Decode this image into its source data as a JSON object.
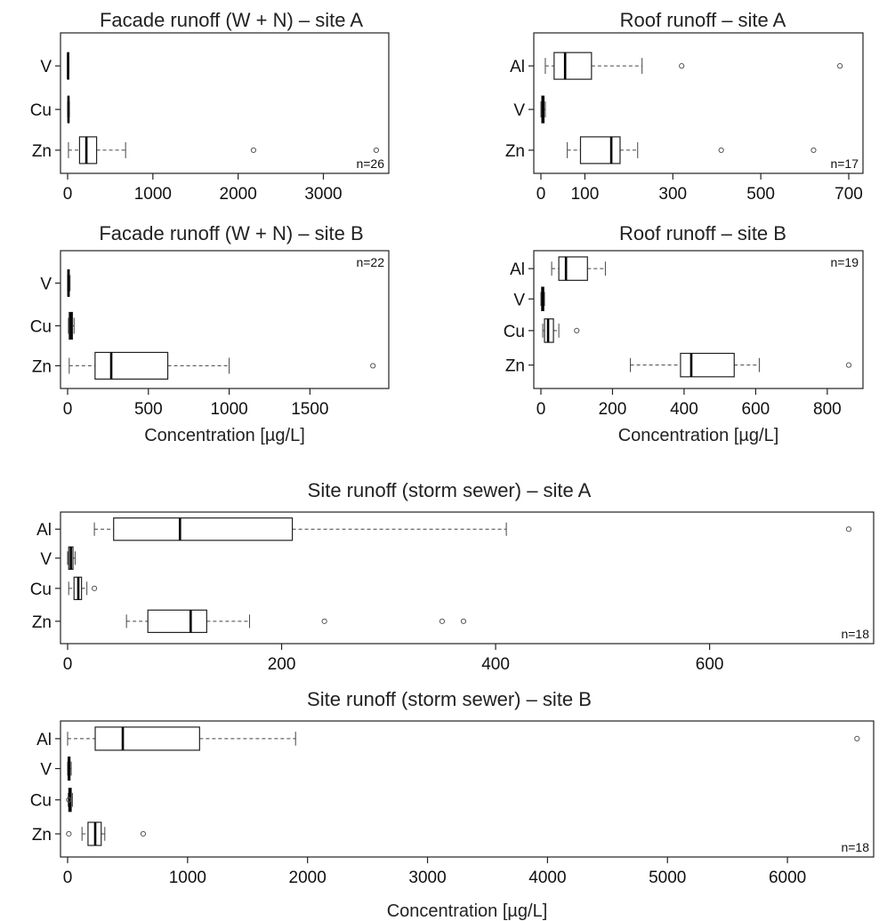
{
  "chart_data": [
    {
      "type": "box",
      "title": "Facade runoff (W + N) – site A",
      "xlabel": "",
      "n_label": "n=26",
      "xlim": [
        0,
        3600
      ],
      "xticks": [
        0,
        1000,
        2000,
        3000
      ],
      "categories": [
        "V",
        "Cu",
        "Zn"
      ],
      "boxes": [
        {
          "category": "V",
          "whisker_low": 0,
          "q1": 2,
          "median": 5,
          "q3": 10,
          "whisker_high": 15,
          "outliers": []
        },
        {
          "category": "Cu",
          "whisker_low": 0,
          "q1": 5,
          "median": 10,
          "q3": 15,
          "whisker_high": 20,
          "outliers": []
        },
        {
          "category": "Zn",
          "whisker_low": 10,
          "q1": 140,
          "median": 220,
          "q3": 340,
          "whisker_high": 680,
          "outliers": [
            2180,
            3620
          ]
        }
      ]
    },
    {
      "type": "box",
      "title": "Roof runoff – site A",
      "xlabel": "",
      "n_label": "n=17",
      "xlim": [
        0,
        700
      ],
      "xticks": [
        0,
        100,
        300,
        500,
        700
      ],
      "categories": [
        "Al",
        "V",
        "Zn"
      ],
      "boxes": [
        {
          "category": "Al",
          "whisker_low": 10,
          "q1": 30,
          "median": 55,
          "q3": 115,
          "whisker_high": 230,
          "outliers": [
            320,
            680
          ]
        },
        {
          "category": "V",
          "whisker_low": 0,
          "q1": 2,
          "median": 5,
          "q3": 7,
          "whisker_high": 10,
          "outliers": []
        },
        {
          "category": "Zn",
          "whisker_low": 60,
          "q1": 90,
          "median": 160,
          "q3": 180,
          "whisker_high": 220,
          "outliers": [
            410,
            620
          ]
        }
      ]
    },
    {
      "type": "box",
      "title": "Facade runoff (W + N) – site B",
      "xlabel": "Concentration [µg/L]",
      "n_label": "n=22",
      "xlim": [
        0,
        1900
      ],
      "xticks": [
        0,
        500,
        1000,
        1500
      ],
      "categories": [
        "V",
        "Cu",
        "Zn"
      ],
      "boxes": [
        {
          "category": "V",
          "whisker_low": 0,
          "q1": 2,
          "median": 5,
          "q3": 10,
          "whisker_high": 15,
          "outliers": []
        },
        {
          "category": "Cu",
          "whisker_low": 5,
          "q1": 10,
          "median": 20,
          "q3": 30,
          "whisker_high": 40,
          "outliers": []
        },
        {
          "category": "Zn",
          "whisker_low": 10,
          "q1": 170,
          "median": 270,
          "q3": 620,
          "whisker_high": 1000,
          "outliers": [
            1890
          ]
        }
      ]
    },
    {
      "type": "box",
      "title": "Roof runoff – site B",
      "xlabel": "Concentration [µg/L]",
      "n_label": "n=19",
      "xlim": [
        0,
        860
      ],
      "xticks": [
        0,
        200,
        400,
        600,
        800
      ],
      "categories": [
        "Al",
        "V",
        "Cu",
        "Zn"
      ],
      "boxes": [
        {
          "category": "Al",
          "whisker_low": 30,
          "q1": 50,
          "median": 70,
          "q3": 130,
          "whisker_high": 180,
          "outliers": []
        },
        {
          "category": "V",
          "whisker_low": 0,
          "q1": 2,
          "median": 5,
          "q3": 8,
          "whisker_high": 10,
          "outliers": []
        },
        {
          "category": "Cu",
          "whisker_low": 5,
          "q1": 10,
          "median": 20,
          "q3": 35,
          "whisker_high": 50,
          "outliers": [
            100
          ]
        },
        {
          "category": "Zn",
          "whisker_low": 250,
          "q1": 390,
          "median": 420,
          "q3": 540,
          "whisker_high": 610,
          "outliers": [
            860
          ]
        }
      ]
    },
    {
      "type": "box",
      "title": "Site runoff (storm sewer) – site A",
      "xlabel": "",
      "n_label": "n=18",
      "xlim": [
        0,
        740
      ],
      "xticks": [
        0,
        200,
        400,
        600
      ],
      "categories": [
        "Al",
        "V",
        "Cu",
        "Zn"
      ],
      "boxes": [
        {
          "category": "Al",
          "whisker_low": 25,
          "q1": 43,
          "median": 105,
          "q3": 210,
          "whisker_high": 410,
          "outliers": [
            730
          ]
        },
        {
          "category": "V",
          "whisker_low": 0,
          "q1": 1,
          "median": 3,
          "q3": 5,
          "whisker_high": 7,
          "outliers": []
        },
        {
          "category": "Cu",
          "whisker_low": 1,
          "q1": 6,
          "median": 10,
          "q3": 13,
          "whisker_high": 18,
          "outliers": [
            25
          ]
        },
        {
          "category": "Zn",
          "whisker_low": 55,
          "q1": 75,
          "median": 115,
          "q3": 130,
          "whisker_high": 170,
          "outliers": [
            240,
            350,
            370
          ]
        }
      ]
    },
    {
      "type": "box",
      "title": "Site runoff (storm sewer) – site B",
      "xlabel": "Concentration [µg/L]",
      "n_label": "n=18",
      "xlim": [
        0,
        6600
      ],
      "xticks": [
        0,
        1000,
        2000,
        3000,
        4000,
        5000,
        6000
      ],
      "categories": [
        "Al",
        "V",
        "Cu",
        "Zn"
      ],
      "boxes": [
        {
          "category": "Al",
          "whisker_low": 0,
          "q1": 230,
          "median": 460,
          "q3": 1100,
          "whisker_high": 1900,
          "outliers": [
            6580
          ]
        },
        {
          "category": "V",
          "whisker_low": 0,
          "q1": 5,
          "median": 10,
          "q3": 20,
          "whisker_high": 30,
          "outliers": []
        },
        {
          "category": "Cu",
          "whisker_low": 5,
          "q1": 10,
          "median": 20,
          "q3": 30,
          "whisker_high": 40,
          "outliers": [
            10
          ]
        },
        {
          "category": "Zn",
          "whisker_low": 120,
          "q1": 170,
          "median": 230,
          "q3": 280,
          "whisker_high": 310,
          "outliers": [
            10,
            630
          ]
        }
      ]
    }
  ]
}
